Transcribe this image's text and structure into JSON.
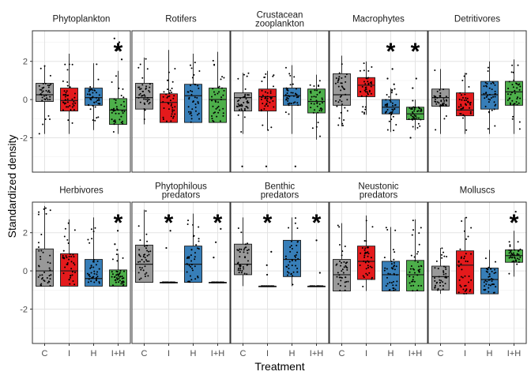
{
  "chart_data": {
    "type": "box",
    "facet_layout": "2x5",
    "xlabel": "Treatment",
    "ylabel": "Standardized density",
    "categories": [
      "C",
      "I",
      "H",
      "I+H"
    ],
    "colors": {
      "C": "#999999",
      "I": "#E41A1C",
      "H": "#377EB8",
      "I+H": "#4DAF4A"
    },
    "ylim": [
      -3.8,
      3.6
    ],
    "yticks": [
      -2,
      0,
      2
    ],
    "yticklabels": [
      "-2",
      "0",
      "2"
    ],
    "grid": true,
    "significance_marker": "*",
    "panels": [
      {
        "title_lines": [
          "Phytoplankton"
        ],
        "significant": [
          "I+H"
        ],
        "stats": [
          {
            "q1": -0.1,
            "median": 0.25,
            "q3": 0.85,
            "lo": -1.8,
            "hi": 1.8,
            "spread": [
              -1.8,
              1.8
            ],
            "outliers": []
          },
          {
            "q1": -0.6,
            "median": -0.05,
            "q3": 0.6,
            "lo": -1.8,
            "hi": 2.4,
            "spread": [
              -1.8,
              2.4
            ],
            "outliers": []
          },
          {
            "q1": -0.3,
            "median": 0.1,
            "q3": 0.6,
            "lo": -1.6,
            "hi": 1.9,
            "spread": [
              -1.6,
              1.9
            ],
            "outliers": []
          },
          {
            "q1": -1.3,
            "median": -0.55,
            "q3": 0.05,
            "lo": -1.8,
            "hi": 1.5,
            "spread": [
              -1.8,
              1.5
            ],
            "outliers": [
              2.1,
              2.6,
              3.0,
              3.2
            ]
          }
        ]
      },
      {
        "title_lines": [
          "Rotifers"
        ],
        "significant": [],
        "stats": [
          {
            "q1": -0.5,
            "median": 0.1,
            "q3": 0.85,
            "lo": -1.3,
            "hi": 2.2,
            "spread": [
              -1.3,
              2.2
            ],
            "outliers": []
          },
          {
            "q1": -1.2,
            "median": -0.15,
            "q3": 0.3,
            "lo": -1.2,
            "hi": 2.6,
            "spread": [
              -1.2,
              2.6
            ],
            "outliers": []
          },
          {
            "q1": -1.2,
            "median": 0.2,
            "q3": 0.8,
            "lo": -1.2,
            "hi": 2.4,
            "spread": [
              -1.2,
              2.4
            ],
            "outliers": []
          },
          {
            "q1": -1.2,
            "median": 0.0,
            "q3": 0.6,
            "lo": -1.2,
            "hi": 2.5,
            "spread": [
              -1.2,
              2.5
            ],
            "outliers": []
          }
        ]
      },
      {
        "title_lines": [
          "Crustacean",
          "zooplankton"
        ],
        "significant": [],
        "stats": [
          {
            "q1": -0.6,
            "median": 0.1,
            "q3": 0.35,
            "lo": -1.8,
            "hi": 1.4,
            "spread": [
              -1.8,
              1.4
            ],
            "outliers": [
              -3.5
            ]
          },
          {
            "q1": -0.6,
            "median": 0.15,
            "q3": 0.55,
            "lo": -1.6,
            "hi": 1.5,
            "spread": [
              -1.6,
              1.5
            ],
            "outliers": [
              -3.5
            ]
          },
          {
            "q1": -0.3,
            "median": 0.2,
            "q3": 0.6,
            "lo": -1.8,
            "hi": 1.8,
            "spread": [
              -1.8,
              1.8
            ],
            "outliers": [
              -3.5
            ]
          },
          {
            "q1": -0.7,
            "median": -0.1,
            "q3": 0.55,
            "lo": -2.1,
            "hi": 1.3,
            "spread": [
              -2.1,
              1.3
            ],
            "outliers": []
          }
        ]
      },
      {
        "title_lines": [
          "Macrophytes"
        ],
        "significant": [
          "H",
          "I+H"
        ],
        "stats": [
          {
            "q1": -0.3,
            "median": 0.25,
            "q3": 1.35,
            "lo": -1.4,
            "hi": 2.3,
            "spread": [
              -1.4,
              2.3
            ],
            "outliers": []
          },
          {
            "q1": 0.15,
            "median": 0.75,
            "q3": 1.15,
            "lo": -0.8,
            "hi": 2.0,
            "spread": [
              -0.8,
              2.0
            ],
            "outliers": []
          },
          {
            "q1": -0.75,
            "median": -0.4,
            "q3": 0.0,
            "lo": -1.7,
            "hi": 0.6,
            "spread": [
              -1.7,
              0.6
            ],
            "outliers": [
              0.8,
              1.1,
              1.6
            ]
          },
          {
            "q1": -1.05,
            "median": -0.75,
            "q3": -0.4,
            "lo": -1.6,
            "hi": 0.0,
            "spread": [
              -1.6,
              0.0
            ],
            "outliers": [
              -2.0,
              0.6,
              1.1
            ]
          }
        ]
      },
      {
        "title_lines": [
          "Detritivores"
        ],
        "significant": [],
        "stats": [
          {
            "q1": -0.35,
            "median": 0.1,
            "q3": 0.55,
            "lo": -1.8,
            "hi": 1.6,
            "spread": [
              -1.8,
              1.6
            ],
            "outliers": []
          },
          {
            "q1": -0.85,
            "median": -0.55,
            "q3": 0.35,
            "lo": -1.8,
            "hi": 1.4,
            "spread": [
              -1.8,
              1.4
            ],
            "outliers": []
          },
          {
            "q1": -0.5,
            "median": 0.25,
            "q3": 0.95,
            "lo": -1.8,
            "hi": 2.0,
            "spread": [
              -1.8,
              2.0
            ],
            "outliers": []
          },
          {
            "q1": -0.3,
            "median": 0.4,
            "q3": 0.95,
            "lo": -1.8,
            "hi": 2.1,
            "spread": [
              -1.8,
              2.1
            ],
            "outliers": []
          }
        ]
      },
      {
        "title_lines": [
          "Herbivores"
        ],
        "significant": [
          "I+H"
        ],
        "stats": [
          {
            "q1": -0.8,
            "median": 0.0,
            "q3": 1.15,
            "lo": -0.8,
            "hi": 3.4,
            "spread": [
              -0.8,
              3.4
            ],
            "outliers": []
          },
          {
            "q1": -0.8,
            "median": 0.0,
            "q3": 0.9,
            "lo": -0.8,
            "hi": 2.7,
            "spread": [
              -0.8,
              2.7
            ],
            "outliers": []
          },
          {
            "q1": -0.8,
            "median": -0.4,
            "q3": 0.6,
            "lo": -0.8,
            "hi": 2.8,
            "spread": [
              -0.8,
              2.8
            ],
            "outliers": []
          },
          {
            "q1": -0.8,
            "median": -0.8,
            "q3": 0.05,
            "lo": -0.8,
            "hi": 0.9,
            "spread": [
              -0.8,
              0.9
            ],
            "outliers": [
              1.1,
              1.4,
              2.1
            ]
          }
        ]
      },
      {
        "title_lines": [
          "Phytophilous",
          "predators"
        ],
        "significant": [
          "I",
          "I+H"
        ],
        "stats": [
          {
            "q1": -0.6,
            "median": 0.35,
            "q3": 1.35,
            "lo": -0.6,
            "hi": 3.2,
            "spread": [
              -0.6,
              3.2
            ],
            "outliers": []
          },
          {
            "q1": -0.6,
            "median": -0.6,
            "q3": -0.6,
            "lo": -0.6,
            "hi": -0.6,
            "spread": [
              -0.6,
              -0.6
            ],
            "outliers": [
              1.2,
              2.1,
              2.9
            ]
          },
          {
            "q1": -0.6,
            "median": 0.35,
            "q3": 1.3,
            "lo": -0.6,
            "hi": 3.0,
            "spread": [
              -0.6,
              3.0
            ],
            "outliers": []
          },
          {
            "q1": -0.6,
            "median": -0.6,
            "q3": -0.6,
            "lo": -0.6,
            "hi": -0.6,
            "spread": [
              -0.6,
              -0.6
            ],
            "outliers": [
              0.7,
              1.5,
              2.2
            ]
          }
        ]
      },
      {
        "title_lines": [
          "Benthic",
          "predators"
        ],
        "significant": [
          "I",
          "I+H"
        ],
        "stats": [
          {
            "q1": -0.2,
            "median": 0.35,
            "q3": 1.4,
            "lo": -0.8,
            "hi": 2.8,
            "spread": [
              -0.8,
              2.8
            ],
            "outliers": []
          },
          {
            "q1": -0.8,
            "median": -0.8,
            "q3": -0.8,
            "lo": -0.8,
            "hi": -0.8,
            "spread": [
              -0.8,
              -0.8
            ],
            "outliers": [
              -0.2,
              0.3,
              1.0
            ]
          },
          {
            "q1": -0.3,
            "median": 0.6,
            "q3": 1.6,
            "lo": -0.8,
            "hi": 2.8,
            "spread": [
              -0.8,
              2.8
            ],
            "outliers": []
          },
          {
            "q1": -0.8,
            "median": -0.8,
            "q3": -0.8,
            "lo": -0.8,
            "hi": -0.8,
            "spread": [
              -0.8,
              -0.8
            ],
            "outliers": [
              -0.1,
              1.6
            ]
          }
        ]
      },
      {
        "title_lines": [
          "Neustonic",
          "predators"
        ],
        "significant": [],
        "stats": [
          {
            "q1": -1.05,
            "median": -0.2,
            "q3": 0.6,
            "lo": -1.05,
            "hi": 2.5,
            "spread": [
              -1.05,
              2.5
            ],
            "outliers": []
          },
          {
            "q1": -0.45,
            "median": 0.5,
            "q3": 1.3,
            "lo": -1.05,
            "hi": 2.9,
            "spread": [
              -1.05,
              2.9
            ],
            "outliers": []
          },
          {
            "q1": -1.05,
            "median": -0.2,
            "q3": 0.5,
            "lo": -1.05,
            "hi": 2.3,
            "spread": [
              -1.05,
              2.3
            ],
            "outliers": []
          },
          {
            "q1": -1.05,
            "median": -0.2,
            "q3": 0.55,
            "lo": -1.05,
            "hi": 2.7,
            "spread": [
              -1.05,
              2.7
            ],
            "outliers": []
          }
        ]
      },
      {
        "title_lines": [
          "Molluscs"
        ],
        "significant": [
          "I+H"
        ],
        "stats": [
          {
            "q1": -1.0,
            "median": -0.3,
            "q3": 0.25,
            "lo": -1.2,
            "hi": 1.2,
            "spread": [
              -1.2,
              1.2
            ],
            "outliers": []
          },
          {
            "q1": -1.2,
            "median": 0.3,
            "q3": 1.05,
            "lo": -1.2,
            "hi": 2.8,
            "spread": [
              -1.2,
              2.8
            ],
            "outliers": []
          },
          {
            "q1": -1.2,
            "median": -0.45,
            "q3": 0.15,
            "lo": -1.2,
            "hi": 1.1,
            "spread": [
              -1.2,
              1.1
            ],
            "outliers": []
          },
          {
            "q1": 0.45,
            "median": 0.8,
            "q3": 1.1,
            "lo": -0.3,
            "hi": 2.1,
            "spread": [
              -0.3,
              2.1
            ],
            "outliers": [
              2.8,
              3.1
            ]
          }
        ]
      }
    ]
  }
}
